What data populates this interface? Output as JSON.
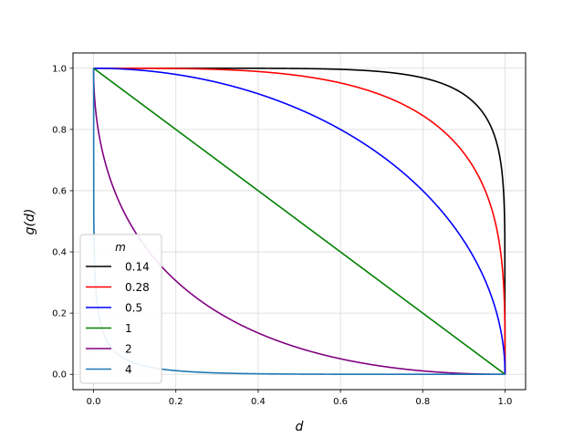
{
  "chart_data": {
    "type": "line",
    "xlabel": "d",
    "ylabel": "g(d)",
    "xlim": [
      -0.05,
      1.05
    ],
    "ylim": [
      -0.05,
      1.05
    ],
    "xticks": [
      "0.0",
      "0.2",
      "0.4",
      "0.6",
      "0.8",
      "1.0"
    ],
    "yticks": [
      "0.0",
      "0.2",
      "0.4",
      "0.6",
      "0.8",
      "1.0"
    ],
    "grid": true,
    "legend": {
      "title": "m",
      "placement": "lower-left"
    },
    "function": "g(d) = (1 - d^(1/m))^m",
    "series": [
      {
        "name": "0.14",
        "m": 0.14,
        "color": "#000000"
      },
      {
        "name": "0.28",
        "m": 0.28,
        "color": "#ff0000"
      },
      {
        "name": "0.5",
        "m": 0.5,
        "color": "#0000ff"
      },
      {
        "name": "1",
        "m": 1,
        "color": "#008000"
      },
      {
        "name": "2",
        "m": 2,
        "color": "#800080"
      },
      {
        "name": "4",
        "m": 4,
        "color": "#1f77b4"
      }
    ]
  }
}
